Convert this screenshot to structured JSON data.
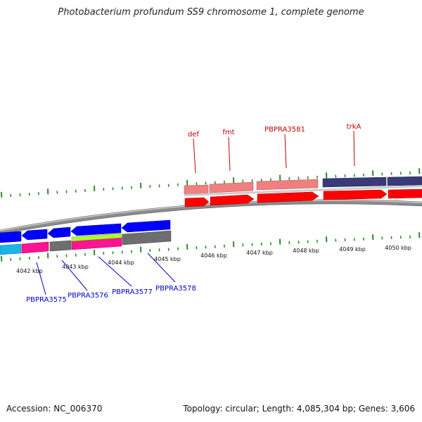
{
  "title": "Photobacterium profundum SS9 chromosome 1, complete genome",
  "accession": "Accession: NC_006370",
  "summary": "Topology: circular; Length: 4,085,304 bp; Genes: 3,606",
  "colors": {
    "tick": "#2e8b2e",
    "backbone": "#888888",
    "forward_gene": "#ff0000",
    "forward_feature": "#f08080",
    "forward_feature_dark": "#3a3a78",
    "reverse_gene": "#0000ff",
    "reverse_cyan": "#19b4e8",
    "reverse_magenta": "#ff1493",
    "reverse_grey": "#6e6e6e",
    "reverse_green": "#adff2f",
    "forward_label": "#c00000",
    "reverse_label": "#0000cc"
  },
  "scale_labels": [
    "4042 kbp",
    "4043 kbp",
    "4044 kbp",
    "4045 kbp",
    "4046 kbp",
    "4047 kbp",
    "4048 kbp",
    "4049 kbp",
    "4050 kbp"
  ],
  "forward_labels": [
    "def",
    "fmt",
    "PBPRA3581",
    "trkA"
  ],
  "reverse_labels": [
    "PBPRA3575",
    "PBPRA3576",
    "PBPRA3577",
    "PBPRA3578"
  ]
}
